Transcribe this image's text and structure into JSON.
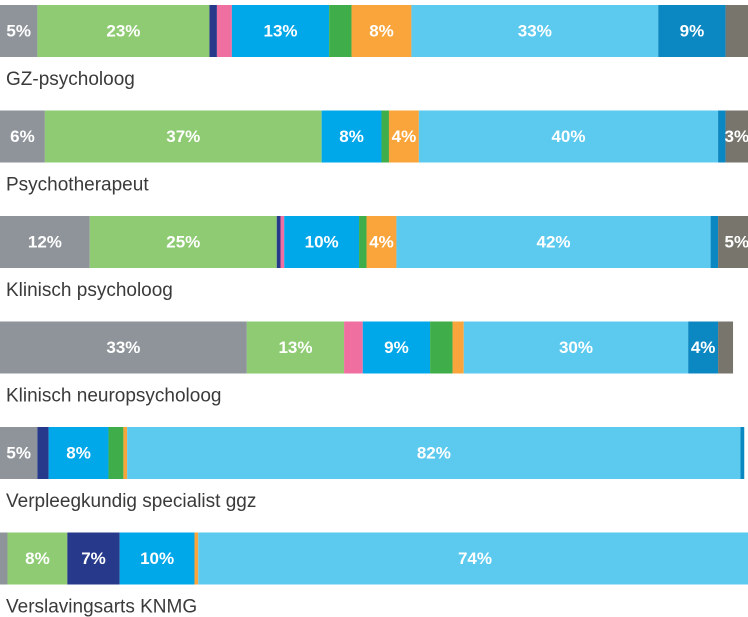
{
  "chart_data": {
    "type": "stacked_bar_horizontal",
    "categories": [
      "GZ-psycholoog",
      "Psychotherapeut",
      "Klinisch psycholoog",
      "Klinisch neuropsycholoog",
      "Verpleegkundig specialist ggz",
      "Verslavingsarts KNMG"
    ],
    "xlim": [
      0,
      100
    ],
    "series": [
      {
        "color": "#8f949a",
        "values": [
          5,
          6,
          12,
          33,
          5,
          1
        ],
        "value_labels": [
          "5%",
          "6%",
          "12%",
          "33%",
          "5%",
          null
        ]
      },
      {
        "color": "#8ecb73",
        "values": [
          23,
          37,
          25,
          13,
          null,
          8
        ],
        "value_labels": [
          "23%",
          "37%",
          "25%",
          "13%",
          null,
          "8%"
        ]
      },
      {
        "color": "#26398a",
        "values": [
          1,
          null,
          0.5,
          null,
          1.5,
          7
        ],
        "value_labels": [
          null,
          null,
          null,
          null,
          null,
          "7%"
        ]
      },
      {
        "color": "#ef6fa0",
        "values": [
          2,
          null,
          0.5,
          2.5,
          null,
          null
        ],
        "value_labels": [
          null,
          null,
          null,
          null,
          null,
          null
        ]
      },
      {
        "color": "#00a7e9",
        "values": [
          13,
          8,
          10,
          9,
          8,
          10
        ],
        "value_labels": [
          "13%",
          "8%",
          "10%",
          "9%",
          "8%",
          "10%"
        ]
      },
      {
        "color": "#3fae4a",
        "values": [
          3,
          1,
          1,
          3,
          2,
          null
        ],
        "value_labels": [
          null,
          null,
          null,
          null,
          null,
          null
        ]
      },
      {
        "color": "#f9a53b",
        "values": [
          8,
          4,
          4,
          1.5,
          0.5,
          0.5
        ],
        "value_labels": [
          "8%",
          "4%",
          "4%",
          null,
          null,
          null
        ]
      },
      {
        "color": "#5cc9ef",
        "values": [
          33,
          40,
          42,
          30,
          82,
          74
        ],
        "value_labels": [
          "33%",
          "40%",
          "42%",
          "30%",
          "82%",
          "74%"
        ]
      },
      {
        "color": "#0b87c2",
        "values": [
          9,
          1,
          1,
          4,
          0.5,
          null
        ],
        "value_labels": [
          "9%",
          null,
          null,
          "4%",
          null,
          null
        ]
      },
      {
        "color": "#78766c",
        "values": [
          3,
          3,
          5,
          2,
          null,
          null
        ],
        "value_labels": [
          null,
          "3%",
          "5%",
          null,
          null,
          null
        ]
      }
    ]
  }
}
